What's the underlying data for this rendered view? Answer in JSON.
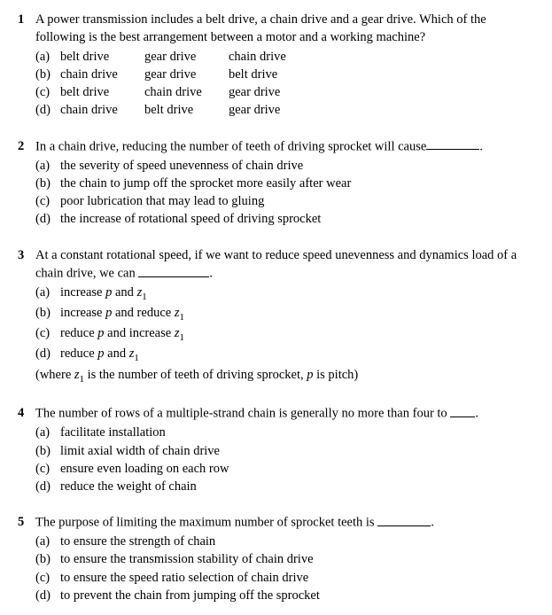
{
  "questions": [
    {
      "num": "1",
      "text": "A power transmission includes a belt drive, a chain drive and a gear drive. Which of the following is the best arrangement between a motor and a working machine?",
      "justified": false,
      "table_options": [
        {
          "label": "(a)",
          "c1": "belt drive",
          "c2": "gear drive",
          "c3": "chain drive"
        },
        {
          "label": "(b)",
          "c1": "chain drive",
          "c2": "gear drive",
          "c3": "belt drive"
        },
        {
          "label": "(c)",
          "c1": "belt drive",
          "c2": "chain drive",
          "c3": "gear drive"
        },
        {
          "label": "(d)",
          "c1": "chain drive",
          "c2": "belt drive",
          "c3": "gear drive"
        }
      ]
    },
    {
      "num": "2",
      "text_pre": "In a chain drive, reducing the number of teeth of driving sprocket will cause",
      "text_post": ".",
      "justified": true,
      "blank_class": "blank",
      "options": [
        {
          "label": "(a)",
          "text": "the severity of speed unevenness of chain drive"
        },
        {
          "label": "(b)",
          "text": "the chain to jump off the sprocket more easily after wear"
        },
        {
          "label": "(c)",
          "text": "poor lubrication that may lead to gluing"
        },
        {
          "label": "(d)",
          "text": "the increase of rotational speed of driving sprocket"
        }
      ]
    },
    {
      "num": "3",
      "text_pre": "At a constant rotational speed, if we want to reduce speed unevenness and dynamics load of a chain drive, we can ",
      "text_post": ".",
      "blank_class": "blank-med",
      "options_pz": [
        {
          "label": "(a)",
          "action": "increase",
          "p": "p",
          "conj": " and ",
          "z": "z",
          "sub": "1"
        },
        {
          "label": "(b)",
          "action": "increase",
          "p": "p",
          "conj": " and reduce ",
          "z": "z",
          "sub": "1"
        },
        {
          "label": "(c)",
          "action": "reduce",
          "p": "p",
          "conj": " and increase ",
          "z": "z",
          "sub": "1"
        },
        {
          "label": "(d)",
          "action": "reduce",
          "p": "p",
          "conj": " and ",
          "z": "z",
          "sub": "1"
        }
      ],
      "note_pre": "(where ",
      "note_z": "z",
      "note_sub": "1",
      "note_mid": " is the number of teeth of driving sprocket, ",
      "note_p": "p",
      "note_post": " is pitch)"
    },
    {
      "num": "4",
      "text_pre": "The number of rows of a multiple-strand chain is generally no more than four to ",
      "text_post": ".",
      "blank_class": "blank-short",
      "options": [
        {
          "label": "(a)",
          "text": "facilitate installation"
        },
        {
          "label": "(b)",
          "text": "limit axial width of chain drive"
        },
        {
          "label": "(c)",
          "text": "ensure even loading on each row"
        },
        {
          "label": "(d)",
          "text": "reduce the weight of chain"
        }
      ]
    },
    {
      "num": "5",
      "text_pre": "The purpose of limiting the maximum number of sprocket teeth is ",
      "text_post": ".",
      "blank_class": "blank",
      "options": [
        {
          "label": "(a)",
          "text": "to ensure the strength of chain"
        },
        {
          "label": "(b)",
          "text": "to ensure the transmission stability of chain drive"
        },
        {
          "label": "(c)",
          "text": "to ensure the speed ratio selection of chain drive"
        },
        {
          "label": "(d)",
          "text": "to prevent the chain from jumping off the sprocket"
        }
      ]
    }
  ]
}
